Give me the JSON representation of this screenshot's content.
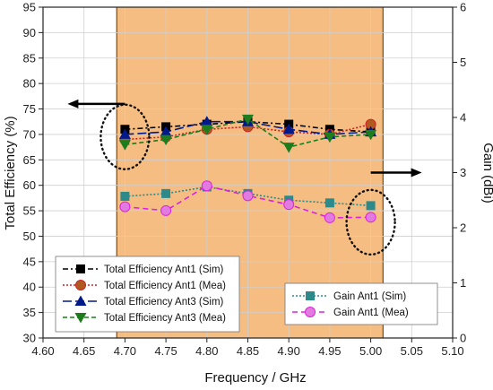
{
  "chart_data": {
    "type": "line",
    "xlabel": "Frequency / GHz",
    "ylabel_left": "Total Efficiency (%)",
    "ylabel_right": "Gain (dBi)",
    "xlim": [
      4.6,
      5.1
    ],
    "ylim_left": [
      30,
      95
    ],
    "ylim_right": [
      0,
      6
    ],
    "x_ticks": [
      "4.60",
      "4.65",
      "4.70",
      "4.75",
      "4.80",
      "4.85",
      "4.90",
      "4.95",
      "5.00",
      "5.05",
      "5.10"
    ],
    "y_left_ticks": [
      "30",
      "35",
      "40",
      "45",
      "50",
      "55",
      "60",
      "65",
      "70",
      "75",
      "80",
      "85",
      "90",
      "95"
    ],
    "y_right_ticks": [
      "0",
      "1",
      "2",
      "3",
      "4",
      "5",
      "6"
    ],
    "grid": true,
    "shaded_band": {
      "x": [
        4.69,
        5.015
      ],
      "color": "#f6bd82"
    },
    "x": [
      4.7,
      4.75,
      4.8,
      4.85,
      4.9,
      4.95,
      5.0
    ],
    "series": [
      {
        "name": "Total Efficiency Ant1 (Sim)",
        "axis": "left",
        "color": "#000000",
        "marker": "square",
        "dash": "6,3,2,3",
        "values": [
          71.0,
          71.5,
          72.0,
          72.5,
          72.0,
          71.0,
          70.5
        ]
      },
      {
        "name": "Total Efficiency Ant1 (Mea)",
        "axis": "left",
        "color": "#cc2222",
        "marker": "circle",
        "marker_fill": "#b05a20",
        "dash": "2,2",
        "values": [
          69.0,
          69.5,
          71.0,
          71.5,
          70.5,
          70.0,
          72.0
        ]
      },
      {
        "name": "Total Efficiency Ant3 (Sim)",
        "axis": "left",
        "color": "#001a8c",
        "marker": "triangle-up",
        "dash": "10,4",
        "values": [
          70.0,
          70.5,
          72.5,
          72.5,
          71.0,
          70.0,
          70.5
        ]
      },
      {
        "name": "Total Efficiency Ant3 (Mea)",
        "axis": "left",
        "color": "#1d7d1d",
        "marker": "triangle-down",
        "dash": "5,3",
        "values": [
          68.0,
          69.0,
          71.0,
          73.0,
          67.5,
          69.5,
          70.0
        ]
      },
      {
        "name": "Gain Ant1 (Sim)",
        "axis": "right",
        "color": "#2c8a8a",
        "marker": "square",
        "dash": "2,2",
        "values": [
          2.57,
          2.62,
          2.74,
          2.62,
          2.5,
          2.45,
          2.4
        ]
      },
      {
        "name": "Gain Ant1 (Mea)",
        "axis": "right",
        "color": "#dd22dd",
        "marker": "circle",
        "marker_fill": "#e27be0",
        "dash": "6,4",
        "values": [
          2.38,
          2.31,
          2.76,
          2.58,
          2.42,
          2.18,
          2.19
        ]
      }
    ],
    "legend": [
      {
        "position": "bottom-left",
        "series": [
          0,
          1,
          2,
          3
        ]
      },
      {
        "position": "bottom-right",
        "series": [
          4,
          5
        ]
      }
    ],
    "annotations": [
      {
        "type": "dotted-ellipse",
        "axis": "left",
        "cx": 4.7,
        "cy": 69.5
      },
      {
        "type": "arrow",
        "direction": "left",
        "axis": "left",
        "at": [
          4.7,
          76
        ]
      },
      {
        "type": "dotted-ellipse",
        "axis": "right",
        "cx": 5.0,
        "cy": 2.1
      },
      {
        "type": "arrow",
        "direction": "right",
        "axis": "right",
        "at": [
          5.0,
          3.0
        ]
      }
    ]
  }
}
